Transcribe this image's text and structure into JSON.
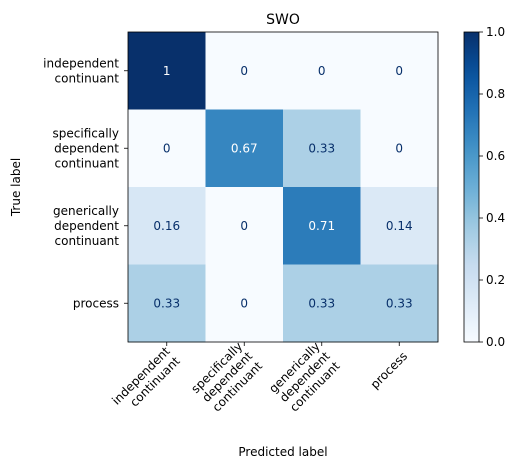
{
  "chart_data": {
    "type": "heatmap",
    "title": "SWO",
    "xlabel": "Predicted label",
    "ylabel": "True label",
    "row_labels": [
      [
        "independent",
        "continuant"
      ],
      [
        "specifically",
        "dependent",
        "continuant"
      ],
      [
        "generically",
        "dependent",
        "continuant"
      ],
      [
        "process"
      ]
    ],
    "col_labels": [
      [
        "independent",
        "continuant"
      ],
      [
        "specifically",
        "dependent",
        "continuant"
      ],
      [
        "generically",
        "dependent",
        "continuant"
      ],
      [
        "process"
      ]
    ],
    "values": [
      [
        1,
        0,
        0,
        0
      ],
      [
        0,
        0.67,
        0.33,
        0
      ],
      [
        0.16,
        0,
        0.71,
        0.14
      ],
      [
        0.33,
        0,
        0.33,
        0.33
      ]
    ],
    "value_labels": [
      [
        "1",
        "0",
        "0",
        "0"
      ],
      [
        "0",
        "0.67",
        "0.33",
        "0"
      ],
      [
        "0.16",
        "0",
        "0.71",
        "0.14"
      ],
      [
        "0.33",
        "0",
        "0.33",
        "0.33"
      ]
    ],
    "colormap": "Blues",
    "vmin": 0,
    "vmax": 1,
    "colorbar_ticks": [
      "0.0",
      "0.2",
      "0.4",
      "0.6",
      "0.8",
      "1.0"
    ],
    "colorbar_tick_values": [
      0,
      0.2,
      0.4,
      0.6,
      0.8,
      1.0
    ]
  }
}
